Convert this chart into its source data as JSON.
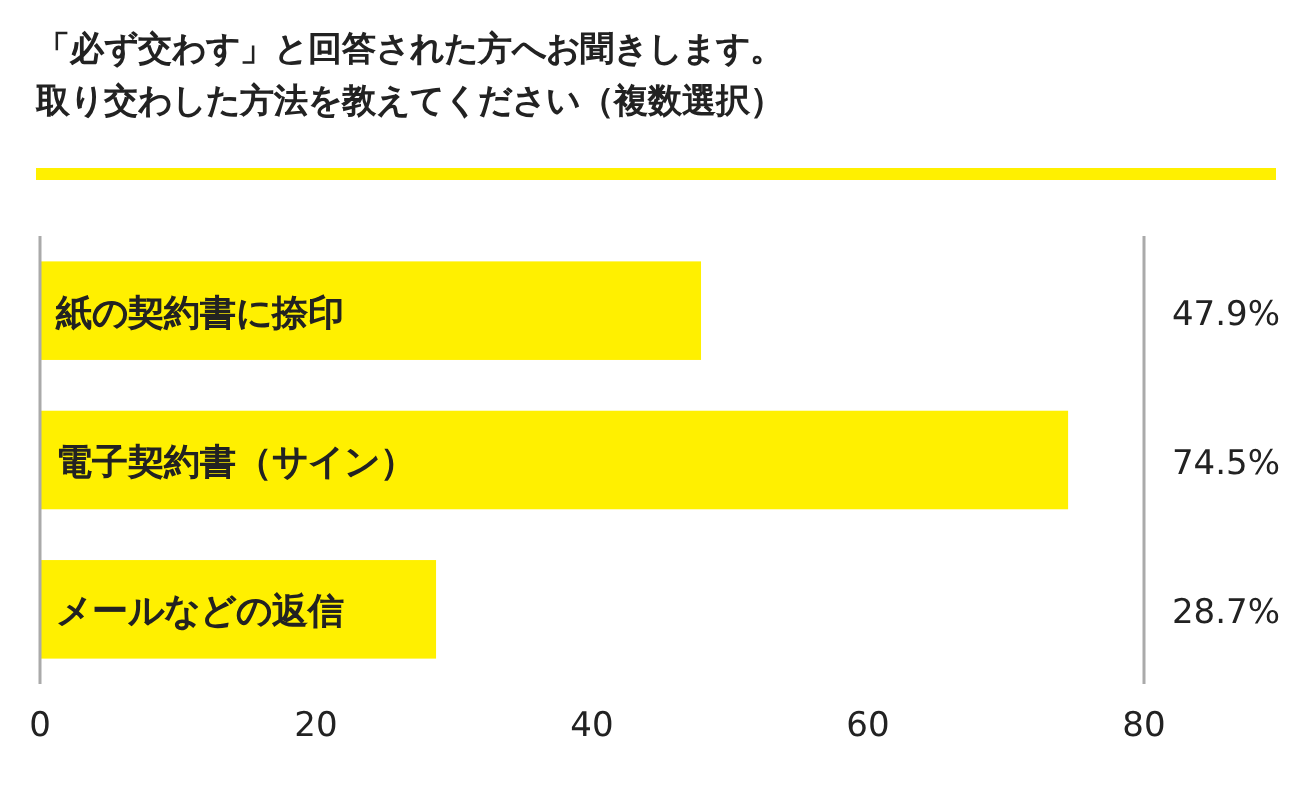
{
  "chart_data": {
    "type": "bar",
    "orientation": "horizontal",
    "title": "「必ず交わす」と回答された方へお聞きします。",
    "subtitle": "取り交わした方法を教えてください（複数選択）",
    "categories": [
      "紙の契約書に捺印",
      "電子契約書（サイン）",
      "メールなどの返信"
    ],
    "values": [
      47.9,
      74.5,
      28.7
    ],
    "value_labels": [
      "47.9%",
      "74.5%",
      "28.7%"
    ],
    "color": "#fff000",
    "xlim": [
      0,
      80
    ],
    "xticks": [
      0,
      20,
      40,
      60,
      80
    ],
    "grid": false
  }
}
